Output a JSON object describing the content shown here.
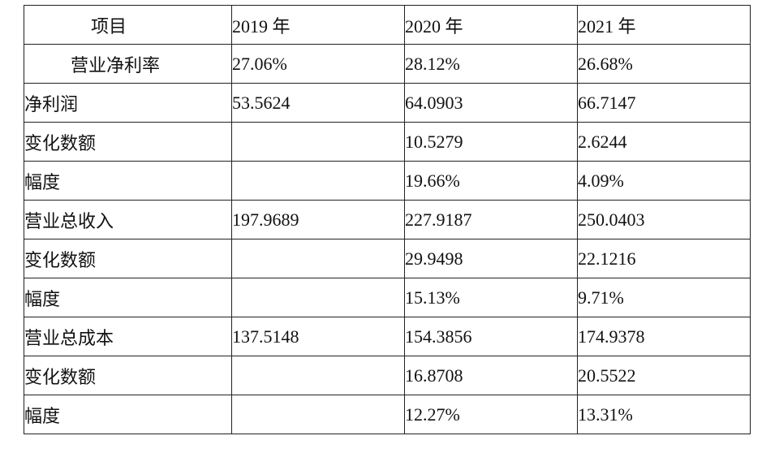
{
  "header": {
    "item": "项目",
    "y2019": "2019 年",
    "y2020": "2020 年",
    "y2021": "2021 年"
  },
  "rows": [
    {
      "label": "营业净利率",
      "v2019": "27.06%",
      "v2020": "28.12%",
      "v2021": "26.68%"
    },
    {
      "label": "净利润",
      "v2019": "53.5624",
      "v2020": "64.0903",
      "v2021": "66.7147"
    },
    {
      "label": "变化数额",
      "v2019": "",
      "v2020": "10.5279",
      "v2021": "2.6244"
    },
    {
      "label": "幅度",
      "v2019": "",
      "v2020": "19.66%",
      "v2021": "4.09%"
    },
    {
      "label": "营业总收入",
      "v2019": "197.9689",
      "v2020": "227.9187",
      "v2021": "250.0403"
    },
    {
      "label": "变化数额",
      "v2019": "",
      "v2020": "29.9498",
      "v2021": "22.1216"
    },
    {
      "label": "幅度",
      "v2019": "",
      "v2020": "15.13%",
      "v2021": "9.71%"
    },
    {
      "label": "营业总成本",
      "v2019": "137.5148",
      "v2020": "154.3856",
      "v2021": "174.9378"
    },
    {
      "label": "变化数额",
      "v2019": "",
      "v2020": "16.8708",
      "v2021": "20.5522"
    },
    {
      "label": "幅度",
      "v2019": "",
      "v2020": "12.27%",
      "v2021": "13.31%"
    }
  ]
}
